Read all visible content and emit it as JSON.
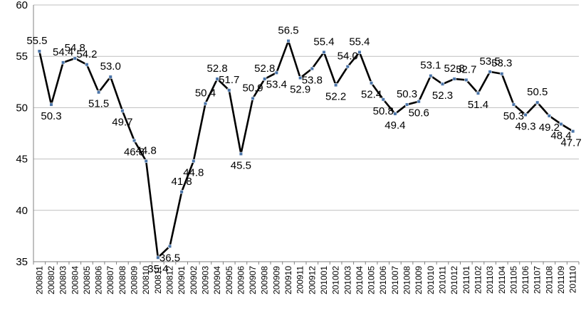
{
  "chart_data": {
    "type": "line",
    "title": "",
    "xlabel": "",
    "ylabel": "",
    "ylim": [
      35,
      60
    ],
    "yticks": [
      35,
      40,
      45,
      50,
      55,
      60
    ],
    "grid": true,
    "legend": "none",
    "line_color": "#000000",
    "marker_color": "#4a74a8",
    "x": [
      "200801",
      "200802",
      "200803",
      "200804",
      "200805",
      "200806",
      "200807",
      "200808",
      "200809",
      "200810",
      "200811",
      "200812",
      "200901",
      "200902",
      "200903",
      "200904",
      "200905",
      "200906",
      "200907",
      "200908",
      "200909",
      "200910",
      "200911",
      "200912",
      "201001",
      "201002",
      "201003",
      "201004",
      "201005",
      "201006",
      "201007",
      "201008",
      "201009",
      "201010",
      "201011",
      "201012",
      "201101",
      "201102",
      "201103",
      "201104",
      "201105",
      "201106",
      "201107",
      "201108",
      "201109",
      "201110"
    ],
    "series": [
      {
        "values": [
          55.5,
          50.3,
          54.4,
          54.8,
          54.2,
          51.5,
          53.0,
          49.7,
          46.8,
          44.8,
          35.4,
          36.5,
          41.8,
          44.8,
          50.4,
          52.8,
          51.7,
          45.5,
          50.9,
          52.8,
          53.4,
          56.5,
          52.9,
          53.8,
          55.4,
          52.2,
          54.0,
          55.4,
          52.4,
          50.8,
          49.4,
          50.3,
          50.6,
          53.1,
          52.3,
          52.8,
          52.7,
          51.4,
          53.5,
          53.3,
          50.3,
          49.3,
          50.5,
          49.2,
          48.4,
          47.7
        ]
      }
    ]
  }
}
